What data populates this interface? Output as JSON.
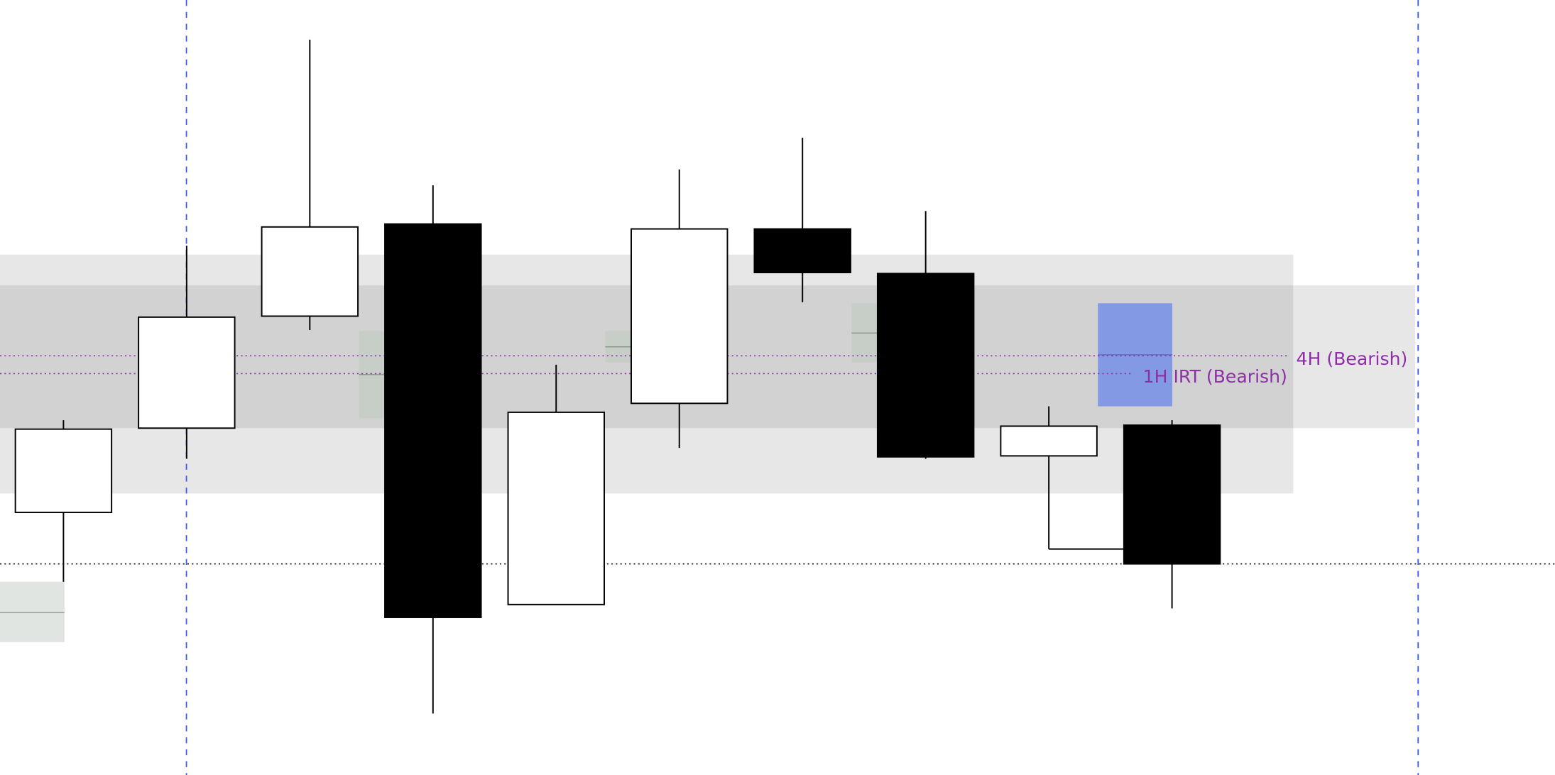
{
  "chart_data": {
    "type": "candlestick",
    "title": "",
    "xlabel": "",
    "ylabel": "",
    "grid": false,
    "ylim": [
      60,
      760
    ],
    "candles": [
      {
        "open": 275,
        "close": 359,
        "high": 368,
        "low": 205,
        "direction": "bullish"
      },
      {
        "open": 360,
        "close": 472,
        "high": 544,
        "low": 329,
        "direction": "bullish"
      },
      {
        "open": 473,
        "close": 563,
        "high": 752,
        "low": 459,
        "direction": "bullish"
      },
      {
        "open": 566,
        "close": 169,
        "high": 605,
        "low": 72,
        "direction": "bearish"
      },
      {
        "open": 182,
        "close": 376,
        "high": 424,
        "low": 182,
        "direction": "bullish"
      },
      {
        "open": 385,
        "close": 561,
        "high": 621,
        "low": 340,
        "direction": "bullish"
      },
      {
        "open": 561,
        "close": 517,
        "high": 653,
        "low": 487,
        "direction": "bearish"
      },
      {
        "open": 516,
        "close": 331,
        "high": 579,
        "low": 329,
        "direction": "bearish"
      },
      {
        "open": 332,
        "close": 362,
        "high": 382,
        "low": 238,
        "direction": "bullish"
      },
      {
        "open": 363,
        "close": 223,
        "high": 368,
        "low": 178,
        "direction": "bearish"
      }
    ],
    "zones": [
      {
        "name": "outer-range",
        "top": 535,
        "bottom": 294,
        "color": "#e7e7e7"
      },
      {
        "name": "inner-range",
        "top": 504,
        "bottom": 360,
        "color": "#d2d2d2"
      }
    ],
    "gaps": [
      {
        "after_candle": 2,
        "top": 458,
        "bottom": 370,
        "mid": 414,
        "color": "#c6ccc6"
      },
      {
        "after_candle": 4,
        "top": 458,
        "bottom": 426,
        "mid": 442,
        "color": "#c6ccc6"
      },
      {
        "after_candle": 6,
        "top": 486,
        "bottom": 426,
        "mid": 456,
        "color": "#c6ccc6"
      },
      {
        "after_candle": 0,
        "top": 205,
        "bottom": 144,
        "mid": 174,
        "color": "#dce1dc"
      },
      {
        "after_candle": 8,
        "top": 486,
        "bottom": 382,
        "mid": 434,
        "color": "#8399e3"
      }
    ],
    "levels": [
      {
        "label": "4H (Bearish)",
        "price": 433,
        "color": "#8e2fa8",
        "style": "dotted"
      },
      {
        "label": "1H IRT (Bearish)",
        "price": 415,
        "color": "#8e2fa8",
        "style": "dotted"
      },
      {
        "label": "",
        "price": 223,
        "color": "#000000",
        "style": "dotted"
      }
    ],
    "session_markers": {
      "color": "#3b5bef",
      "style": "dashed",
      "before_candles": [
        1,
        10
      ]
    },
    "colors": {
      "bullish": "#ffffff",
      "bearish": "#000000",
      "outline": "#000000"
    }
  }
}
